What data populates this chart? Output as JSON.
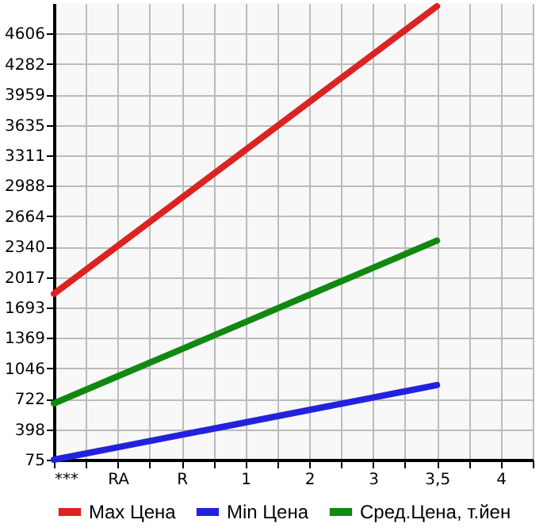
{
  "chart_data": {
    "type": "line",
    "categories": [
      "***",
      "RA",
      "R",
      "1",
      "2",
      "3",
      "3,5",
      "4"
    ],
    "series": [
      {
        "name": "Max Цена",
        "color": "#dd2222",
        "values": [
          1839,
          2349,
          2858,
          3368,
          3878,
          4387,
          4897,
          null
        ]
      },
      {
        "name": "Min Цена",
        "color": "#2222dd",
        "values": [
          75,
          207,
          339,
          471,
          604,
          736,
          868,
          null
        ]
      },
      {
        "name": "Сред.Цена, т.йен",
        "color": "#118811",
        "values": [
          673,
          962,
          1250,
          1539,
          1828,
          2116,
          2405,
          null
        ]
      }
    ],
    "ylim": [
      75,
      4930
    ],
    "yticks": [
      75,
      398,
      722,
      1046,
      1369,
      1693,
      2017,
      2340,
      2664,
      2988,
      3311,
      3635,
      3959,
      4282,
      4606
    ],
    "grid": true,
    "legend": "bottom",
    "marker": "none",
    "line_style": "solid"
  }
}
